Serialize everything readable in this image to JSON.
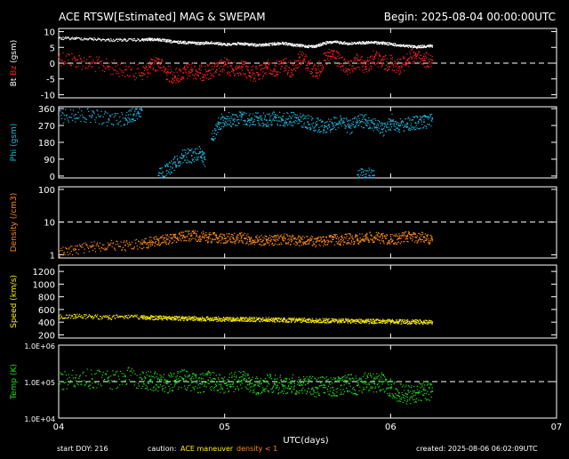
{
  "header": {
    "title": "ACE RTSW[Estimated] MAG & SWEPAM",
    "begin": "Begin: 2025-08-04 00:00:00UTC"
  },
  "footer": {
    "start_doy": "start DOY: 216",
    "caution_label": "caution:",
    "caution_maneuver": "ACE maneuver",
    "caution_density": "density < 1",
    "created": "created: 2025-08-06 06:02:09UTC"
  },
  "colors": {
    "bt": "#ffffff",
    "bz": "#ff2020",
    "phi": "#20b8e0",
    "density": "#ff8c1a",
    "speed": "#ffee00",
    "temp": "#20e020",
    "caution_maneuver": "#ffee00",
    "caution_density": "#ff8c1a",
    "frame": "#ffffff"
  },
  "chart_data": [
    {
      "type": "scatter",
      "id": "mag",
      "ylabel_parts": [
        "Bt",
        "Bz",
        "(gsm)"
      ],
      "ylim": [
        -11,
        11
      ],
      "yticks": [
        10,
        5,
        0,
        -5,
        -10
      ],
      "ref_lines": [
        0
      ],
      "x_end": 6.25,
      "series": [
        {
          "name": "Bt",
          "x": [
            4.0,
            4.1,
            4.2,
            4.3,
            4.4,
            4.5,
            4.55,
            4.6,
            4.65,
            4.7,
            4.75,
            4.8,
            4.85,
            4.9,
            4.95,
            5.0,
            5.05,
            5.1,
            5.15,
            5.2,
            5.25,
            5.3,
            5.35,
            5.4,
            5.45,
            5.5,
            5.55,
            5.6,
            5.65,
            5.7,
            5.75,
            5.8,
            5.85,
            5.9,
            5.95,
            6.0,
            6.05,
            6.1,
            6.15,
            6.2,
            6.25
          ],
          "values": [
            8,
            8,
            7.8,
            7.5,
            7.5,
            7.5,
            7.7,
            7.6,
            7.2,
            6.8,
            6.8,
            6.6,
            6.4,
            6.6,
            6.5,
            6,
            6.3,
            6.3,
            6.1,
            5.8,
            6,
            6.3,
            6.5,
            6,
            5.7,
            5.5,
            5.5,
            6.5,
            6.8,
            6.7,
            6.3,
            6.6,
            6.6,
            6.7,
            6.5,
            6.2,
            5.8,
            5.5,
            5.3,
            5.5,
            5.6
          ]
        },
        {
          "name": "Bz",
          "x": [
            4.0,
            4.1,
            4.2,
            4.3,
            4.4,
            4.5,
            4.55,
            4.6,
            4.65,
            4.7,
            4.75,
            4.8,
            4.85,
            4.9,
            4.95,
            5.0,
            5.05,
            5.1,
            5.15,
            5.2,
            5.25,
            5.3,
            5.35,
            5.4,
            5.45,
            5.5,
            5.55,
            5.6,
            5.65,
            5.7,
            5.75,
            5.8,
            5.85,
            5.9,
            5.95,
            6.0,
            6.05,
            6.1,
            6.15,
            6.2,
            6.25
          ],
          "values": [
            2,
            1,
            0,
            -1,
            -2,
            -3,
            -1,
            0.5,
            -3,
            -4,
            -3,
            -2,
            -3,
            -2.5,
            -2,
            -0.5,
            -2,
            -1,
            -3,
            -3.5,
            -1,
            -2,
            0,
            -2,
            2,
            0,
            -3,
            1,
            3,
            0,
            -2,
            1,
            -1,
            2,
            0,
            0.5,
            -1,
            1,
            3,
            1,
            1
          ]
        }
      ]
    },
    {
      "type": "scatter",
      "id": "phi",
      "ylabel": "Phi (gsm)",
      "ylim": [
        -10,
        370
      ],
      "yticks": [
        360,
        270,
        180,
        90,
        0
      ],
      "x_end": 6.25,
      "segments": [
        {
          "x": [
            4.0,
            4.1,
            4.2,
            4.3,
            4.4,
            4.45,
            4.5
          ],
          "values": [
            315,
            330,
            325,
            305,
            310,
            330,
            355
          ]
        },
        {
          "x": [
            4.6,
            4.65,
            4.7,
            4.75,
            4.8,
            4.85,
            4.88
          ],
          "values": [
            5,
            30,
            75,
            110,
            110,
            130,
            90
          ]
        },
        {
          "x": [
            4.92,
            4.96,
            5.0,
            5.05,
            5.1,
            5.15,
            5.2,
            5.25,
            5.3,
            5.35,
            5.4,
            5.45,
            5.5,
            5.55,
            5.6,
            5.65,
            5.7,
            5.75,
            5.8,
            5.85,
            5.9,
            5.95,
            6.0
          ],
          "values": [
            200,
            280,
            310,
            300,
            315,
            300,
            310,
            300,
            315,
            300,
            310,
            300,
            290,
            275,
            270,
            280,
            300,
            260,
            290,
            300,
            280,
            250,
            280
          ]
        },
        {
          "x": [
            6.0,
            6.05,
            6.1,
            6.15,
            6.2,
            6.25
          ],
          "values": [
            300,
            270,
            280,
            285,
            290,
            310
          ]
        },
        {
          "x": [
            5.8,
            5.85,
            5.9
          ],
          "values": [
            8,
            12,
            5
          ]
        }
      ]
    },
    {
      "type": "scatter",
      "id": "density",
      "ylabel": "Density (/cm3)",
      "yscale": "log",
      "ylim": [
        0.8,
        120
      ],
      "yticks": [
        100,
        10,
        1
      ],
      "ytick_labels": [
        "100",
        "10",
        "1"
      ],
      "ref_lines": [
        10
      ],
      "x_end": 6.25,
      "series": [
        {
          "name": "Density",
          "x": [
            4.0,
            4.1,
            4.2,
            4.3,
            4.4,
            4.5,
            4.55,
            4.6,
            4.65,
            4.7,
            4.75,
            4.8,
            4.85,
            4.9,
            4.95,
            5.0,
            5.05,
            5.1,
            5.15,
            5.2,
            5.25,
            5.3,
            5.35,
            5.4,
            5.45,
            5.5,
            5.55,
            5.6,
            5.65,
            5.7,
            5.75,
            5.8,
            5.85,
            5.9,
            5.95,
            6.0,
            6.05,
            6.1,
            6.15,
            6.2,
            6.25
          ],
          "values": [
            1.2,
            1.5,
            1.8,
            2,
            2,
            2.2,
            2.5,
            2.8,
            3,
            3.5,
            4,
            4,
            3.8,
            3.5,
            3.5,
            3.2,
            3.3,
            3.5,
            3,
            2.8,
            3,
            2.8,
            3.2,
            3,
            2.7,
            2.8,
            2.5,
            2.8,
            3,
            3,
            3.2,
            3,
            3.5,
            3.5,
            3.3,
            3,
            3.2,
            3.8,
            3.5,
            3.5,
            3
          ]
        }
      ]
    },
    {
      "type": "scatter",
      "id": "speed",
      "ylabel": "Speed (km/s)",
      "ylim": [
        150,
        1300
      ],
      "yticks": [
        1200,
        1000,
        800,
        600,
        400,
        200
      ],
      "x_end": 6.25,
      "series": [
        {
          "name": "Speed",
          "x": [
            4.0,
            4.1,
            4.2,
            4.3,
            4.4,
            4.5,
            4.55,
            4.6,
            4.65,
            4.7,
            4.75,
            4.8,
            4.85,
            4.9,
            4.95,
            5.0,
            5.05,
            5.1,
            5.15,
            5.2,
            5.25,
            5.3,
            5.35,
            5.4,
            5.45,
            5.5,
            5.55,
            5.6,
            5.65,
            5.7,
            5.75,
            5.8,
            5.85,
            5.9,
            5.95,
            6.0,
            6.05,
            6.1,
            6.15,
            6.2,
            6.25
          ],
          "values": [
            490,
            500,
            495,
            480,
            495,
            480,
            478,
            475,
            470,
            470,
            465,
            465,
            460,
            458,
            455,
            455,
            452,
            450,
            450,
            445,
            448,
            445,
            440,
            440,
            438,
            435,
            432,
            430,
            430,
            428,
            425,
            425,
            422,
            420,
            420,
            418,
            415,
            412,
            410,
            410,
            405
          ]
        }
      ]
    },
    {
      "type": "scatter",
      "id": "temp",
      "ylabel": "Temp (K)",
      "yscale": "log",
      "ylim": [
        10000,
        1000000
      ],
      "yticks": [
        1000000,
        100000,
        10000
      ],
      "ytick_labels": [
        "1.0E+06",
        "1.0E+05",
        "1.0E+04"
      ],
      "ref_lines": [
        100000
      ],
      "x_end": 6.25,
      "series": [
        {
          "name": "Temp",
          "x": [
            4.0,
            4.1,
            4.2,
            4.3,
            4.4,
            4.5,
            4.55,
            4.6,
            4.65,
            4.7,
            4.75,
            4.8,
            4.85,
            4.9,
            4.95,
            5.0,
            5.05,
            5.1,
            5.15,
            5.2,
            5.25,
            5.3,
            5.35,
            5.4,
            5.45,
            5.5,
            5.55,
            5.6,
            5.65,
            5.7,
            5.75,
            5.8,
            5.85,
            5.9,
            5.95,
            6.0,
            6.05,
            6.1,
            6.15,
            6.2,
            6.25
          ],
          "values": [
            100000,
            130000,
            120000,
            110000,
            140000,
            120000,
            110000,
            100000,
            90000,
            110000,
            120000,
            100000,
            90000,
            110000,
            100000,
            90000,
            100000,
            110000,
            90000,
            80000,
            100000,
            90000,
            80000,
            90000,
            80000,
            90000,
            70000,
            80000,
            70000,
            80000,
            90000,
            80000,
            100000,
            90000,
            100000,
            70000,
            50000,
            45000,
            50000,
            60000,
            55000
          ]
        }
      ]
    }
  ],
  "xaxis": {
    "label": "UTC(days)",
    "ticks": [
      4,
      5,
      6,
      7
    ],
    "tick_labels": [
      "04",
      "05",
      "06",
      "07"
    ],
    "xlim": [
      4,
      7
    ]
  }
}
